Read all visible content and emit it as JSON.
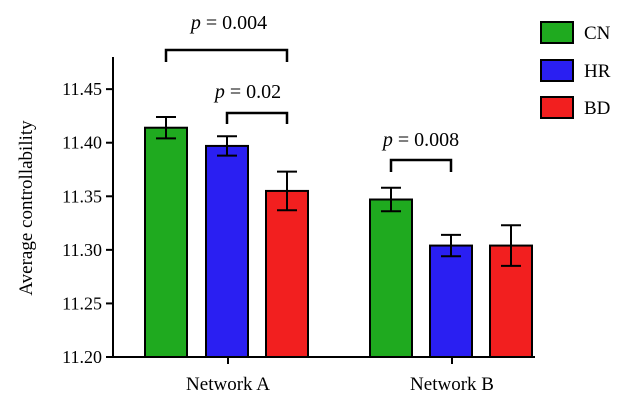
{
  "chart_data": {
    "type": "bar",
    "title": "",
    "xlabel": "",
    "ylabel": "Average controllability",
    "categories": [
      "Network A",
      "Network B"
    ],
    "series": [
      {
        "name": "CN",
        "color": "#1faa1f",
        "values": [
          11.414,
          11.347
        ],
        "errors": [
          0.01,
          0.011
        ]
      },
      {
        "name": "HR",
        "color": "#2a1ff2",
        "values": [
          11.397,
          11.304
        ],
        "errors": [
          0.009,
          0.01
        ]
      },
      {
        "name": "BD",
        "color": "#f21f1f",
        "values": [
          11.355,
          11.304
        ],
        "errors": [
          0.018,
          0.019
        ]
      }
    ],
    "ylim": [
      11.2,
      11.48
    ],
    "yticks": [
      "11.20",
      "11.25",
      "11.30",
      "11.35",
      "11.40",
      "11.45"
    ],
    "legend_position": "top-right",
    "grid": false,
    "annotations": [
      {
        "p_symbol": "p",
        "rest": " = 0.004",
        "category": 0,
        "from_series": 0,
        "to_series": 2
      },
      {
        "p_symbol": "p",
        "rest": " = 0.02",
        "category": 0,
        "from_series": 1,
        "to_series": 2
      },
      {
        "p_symbol": "p",
        "rest": " = 0.008",
        "category": 1,
        "from_series": 0,
        "to_series": 1
      }
    ]
  }
}
